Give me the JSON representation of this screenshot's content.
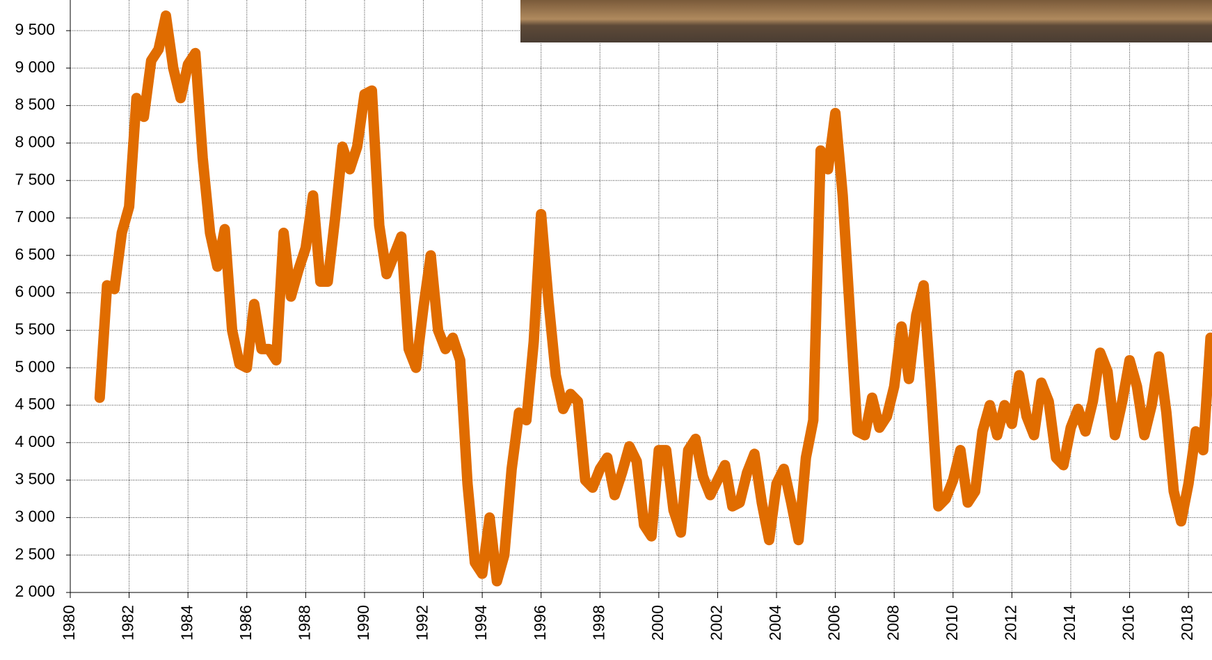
{
  "chart_data": {
    "type": "line",
    "x": [
      1981,
      1981.25,
      1981.5,
      1981.75,
      1982,
      1982.25,
      1982.5,
      1982.75,
      1983,
      1983.25,
      1983.5,
      1983.75,
      1984,
      1984.25,
      1984.5,
      1984.75,
      1985,
      1985.25,
      1985.5,
      1985.75,
      1986,
      1986.25,
      1986.5,
      1986.75,
      1987,
      1987.25,
      1987.5,
      1987.75,
      1988,
      1988.25,
      1988.5,
      1988.75,
      1989,
      1989.25,
      1989.5,
      1989.75,
      1990,
      1990.25,
      1990.5,
      1990.75,
      1991,
      1991.25,
      1991.5,
      1991.75,
      1992,
      1992.25,
      1992.5,
      1992.75,
      1993,
      1993.25,
      1993.5,
      1993.75,
      1994,
      1994.25,
      1994.5,
      1994.75,
      1995,
      1995.25,
      1995.5,
      1995.75,
      1996,
      1996.25,
      1996.5,
      1996.75,
      1997,
      1997.25,
      1997.5,
      1997.75,
      1998,
      1998.25,
      1998.5,
      1998.75,
      1999,
      1999.25,
      1999.5,
      1999.75,
      2000,
      2000.25,
      2000.5,
      2000.75,
      2001,
      2001.25,
      2001.5,
      2001.75,
      2002,
      2002.25,
      2002.5,
      2002.75,
      2003,
      2003.25,
      2003.5,
      2003.75,
      2004,
      2004.25,
      2004.5,
      2004.75,
      2005,
      2005.25,
      2005.5,
      2005.75,
      2006,
      2006.25,
      2006.5,
      2006.75,
      2007,
      2007.25,
      2007.5,
      2007.75,
      2008,
      2008.25,
      2008.5,
      2008.75,
      2009,
      2009.25,
      2009.5,
      2009.75,
      2010,
      2010.25,
      2010.5,
      2010.75,
      2011,
      2011.25,
      2011.5,
      2011.75,
      2012,
      2012.25,
      2012.5,
      2012.75,
      2013,
      2013.25,
      2013.5,
      2013.75,
      2014,
      2014.25,
      2014.5,
      2014.75,
      2015,
      2015.25,
      2015.5,
      2015.75,
      2016,
      2016.25,
      2016.5,
      2016.75,
      2017,
      2017.25,
      2017.5,
      2017.75,
      2018,
      2018.25,
      2018.5,
      2018.75
    ],
    "series": [
      {
        "color": "#e06c00",
        "values": [
          4600,
          6100,
          6050,
          6800,
          7150,
          8600,
          8350,
          9100,
          9250,
          9700,
          9000,
          8600,
          9050,
          9200,
          7800,
          6800,
          6350,
          6850,
          5500,
          5050,
          5000,
          5850,
          5250,
          5250,
          5100,
          6800,
          5950,
          6300,
          6600,
          7300,
          6150,
          6150,
          7000,
          7950,
          7650,
          7950,
          8650,
          8700,
          6900,
          6250,
          6500,
          6750,
          5250,
          5000,
          5800,
          6500,
          5500,
          5250,
          5400,
          5100,
          3450,
          2400,
          2250,
          3000,
          2150,
          2500,
          3650,
          4400,
          4300,
          5350,
          7050,
          5900,
          4900,
          4450,
          4650,
          4550,
          3500,
          3400,
          3650,
          3800,
          3300,
          3600,
          3950,
          3750,
          2900,
          2750,
          3900,
          3900,
          3100,
          2800,
          3900,
          4050,
          3550,
          3300,
          3500,
          3700,
          3150,
          3200,
          3600,
          3850,
          3200,
          2700,
          3450,
          3650,
          3200,
          2700,
          3800,
          4300,
          7900,
          7650,
          8400,
          7300,
          5700,
          4150,
          4100,
          4600,
          4200,
          4350,
          4750,
          5550,
          4850,
          5700,
          6100,
          4700,
          3150,
          3250,
          3500,
          3900,
          3200,
          3350,
          4150,
          4500,
          4100,
          4500,
          4250,
          4900,
          4350,
          4100,
          4800,
          4550,
          3800,
          3700,
          4200,
          4450,
          4150,
          4550,
          5200,
          4950,
          4100,
          4550,
          5100,
          4750,
          4100,
          4500,
          5150,
          4400,
          3350,
          2950,
          3450,
          4150,
          3900,
          5400
        ]
      }
    ],
    "xlim": [
      1980,
      2018.8
    ],
    "xticks": [
      1980,
      1982,
      1984,
      1986,
      1988,
      1990,
      1992,
      1994,
      1996,
      1998,
      2000,
      2002,
      2004,
      2006,
      2008,
      2010,
      2012,
      2014,
      2016,
      2018
    ],
    "ylim": [
      2000,
      9900
    ],
    "yticks": [
      {
        "value": 2000,
        "label": "2 000"
      },
      {
        "value": 2500,
        "label": "2 500"
      },
      {
        "value": 3000,
        "label": "3 000"
      },
      {
        "value": 3500,
        "label": "3 500"
      },
      {
        "value": 4000,
        "label": "4 000"
      },
      {
        "value": 4500,
        "label": "4 500"
      },
      {
        "value": 5000,
        "label": "5 000"
      },
      {
        "value": 5500,
        "label": "5 500"
      },
      {
        "value": 6000,
        "label": "6 000"
      },
      {
        "value": 6500,
        "label": "6 500"
      },
      {
        "value": 7000,
        "label": "7 000"
      },
      {
        "value": 7500,
        "label": "7 500"
      },
      {
        "value": 8000,
        "label": "8 000"
      },
      {
        "value": 8500,
        "label": "8 500"
      },
      {
        "value": 9000,
        "label": "9 000"
      },
      {
        "value": 9500,
        "label": "9 500"
      }
    ],
    "grid": true
  }
}
